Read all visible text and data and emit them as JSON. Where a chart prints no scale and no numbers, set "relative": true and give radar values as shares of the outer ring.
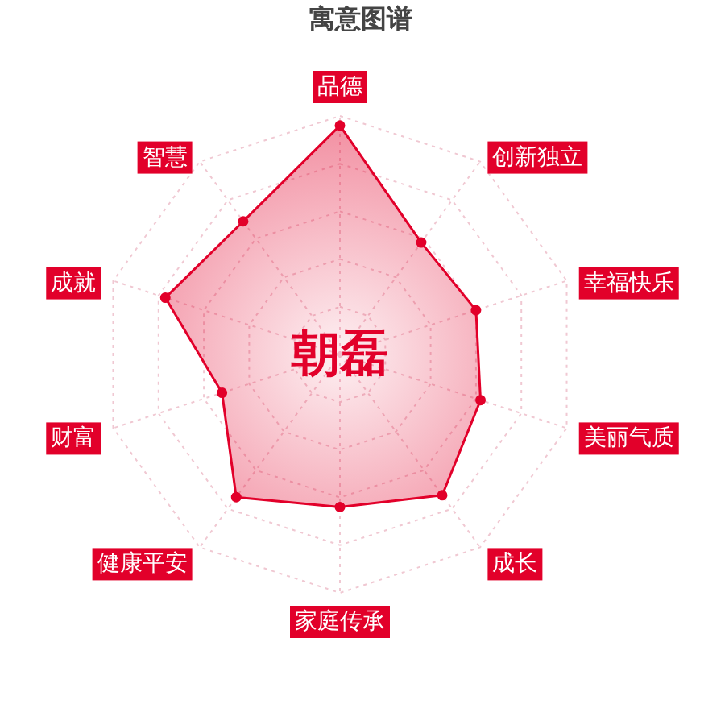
{
  "chart_data": {
    "type": "radar",
    "title": "寓意图谱",
    "categories": [
      "品德",
      "创新独立",
      "幸福快乐",
      "美丽气质",
      "成长",
      "家庭传承",
      "健康平安",
      "财富",
      "成就",
      "智慧"
    ],
    "series": [
      {
        "color": "#e2002a",
        "values": [
          0.96,
          0.58,
          0.6,
          0.62,
          0.73,
          0.64,
          0.74,
          0.52,
          0.77,
          0.69
        ]
      }
    ],
    "relative": true,
    "grid": true,
    "marker": "circle",
    "annotations": [
      "朝磊"
    ]
  }
}
